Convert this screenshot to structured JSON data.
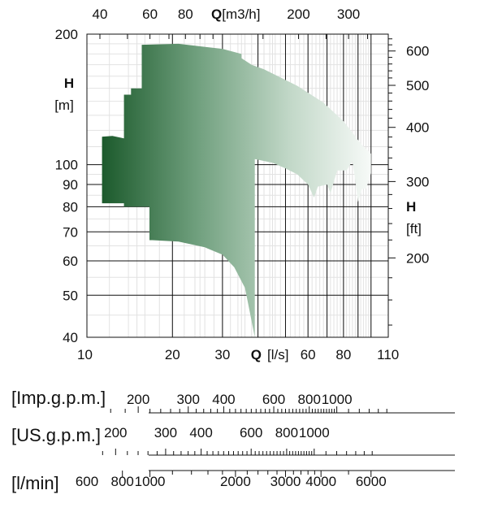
{
  "chart_data": {
    "type": "area",
    "title": "",
    "x_axis_bottom": {
      "label_bold": "Q",
      "label_unit": "[l/s]",
      "scale": "log",
      "range": [
        10,
        115
      ],
      "ticks": [
        {
          "v": 10,
          "t": "10"
        },
        {
          "v": 20,
          "t": "20"
        },
        {
          "v": 30,
          "t": "30"
        },
        {
          "v": 60,
          "t": "60"
        },
        {
          "v": 80,
          "t": "80"
        },
        {
          "v": 110,
          "t": "110"
        }
      ]
    },
    "x_axis_top": {
      "label_bold": "Q",
      "label_unit": "[m3/h]",
      "ticks": [
        {
          "v": 40,
          "t": "40"
        },
        {
          "v": 60,
          "t": "60"
        },
        {
          "v": 80,
          "t": "80"
        },
        {
          "v": 200,
          "t": "200"
        },
        {
          "v": 300,
          "t": "300"
        }
      ]
    },
    "y_axis_left": {
      "label_bold": "H",
      "label_unit": "[m]",
      "scale": "log",
      "range": [
        40,
        200
      ],
      "ticks": [
        {
          "v": 40,
          "t": "40"
        },
        {
          "v": 50,
          "t": "50"
        },
        {
          "v": 60,
          "t": "60"
        },
        {
          "v": 70,
          "t": "70"
        },
        {
          "v": 80,
          "t": "80"
        },
        {
          "v": 90,
          "t": "90"
        },
        {
          "v": 100,
          "t": "100"
        },
        {
          "v": 200,
          "t": "200"
        }
      ]
    },
    "y_axis_right": {
      "label_bold": "H",
      "label_unit": "[ft]",
      "ticks": [
        {
          "v": 200,
          "t": "200"
        },
        {
          "v": 300,
          "t": "300"
        },
        {
          "v": 400,
          "t": "400"
        },
        {
          "v": 500,
          "t": "500"
        },
        {
          "v": 600,
          "t": "600"
        }
      ]
    },
    "grid": true,
    "region": [
      [
        11.3,
        81.5
      ],
      [
        11.3,
        116
      ],
      [
        12.3,
        116.5
      ],
      [
        13.5,
        115
      ],
      [
        13.5,
        145
      ],
      [
        14.3,
        145
      ],
      [
        14.3,
        150
      ],
      [
        15.6,
        150
      ],
      [
        15.6,
        189
      ],
      [
        21,
        190
      ],
      [
        30,
        185
      ],
      [
        35,
        180
      ],
      [
        35,
        176
      ],
      [
        38,
        170
      ],
      [
        42,
        166
      ],
      [
        55,
        152
      ],
      [
        68,
        139
      ],
      [
        80,
        126
      ],
      [
        93,
        111
      ],
      [
        100,
        106
      ],
      [
        100,
        95.5
      ],
      [
        96,
        88
      ],
      [
        93,
        88
      ],
      [
        90,
        82
      ],
      [
        88,
        92
      ],
      [
        86,
        102
      ],
      [
        82,
        97
      ],
      [
        76,
        97
      ],
      [
        72,
        86
      ],
      [
        70,
        90
      ],
      [
        65,
        89
      ],
      [
        63,
        84
      ],
      [
        60,
        90
      ],
      [
        55,
        95
      ],
      [
        50,
        98
      ],
      [
        45,
        101
      ],
      [
        39,
        103
      ],
      [
        39,
        40
      ],
      [
        36,
        52
      ],
      [
        33,
        58
      ],
      [
        30,
        62
      ],
      [
        26,
        64.5
      ],
      [
        21,
        66.5
      ],
      [
        17,
        67
      ],
      [
        16.6,
        67
      ],
      [
        16.6,
        80
      ],
      [
        13.5,
        80
      ],
      [
        13.5,
        81.5
      ]
    ],
    "fill_gradient": [
      "#1c5a2c",
      "#6f9f7d",
      "#c2d8c8",
      "#f7faf8"
    ]
  },
  "flow_scales": [
    {
      "unit": "[Imp.g.p.m.]",
      "ticks": [
        {
          "v": 200,
          "t": "200"
        },
        {
          "v": 300,
          "t": "300"
        },
        {
          "v": 400,
          "t": "400"
        },
        {
          "v": 600,
          "t": "600"
        },
        {
          "v": 800,
          "t": "800"
        },
        {
          "v": 1000,
          "t": "1000"
        }
      ]
    },
    {
      "unit": "[US.g.p.m.]",
      "ticks": [
        {
          "v": 200,
          "t": "200"
        },
        {
          "v": 300,
          "t": "300"
        },
        {
          "v": 400,
          "t": "400"
        },
        {
          "v": 600,
          "t": "600"
        },
        {
          "v": 800,
          "t": "800"
        },
        {
          "v": 1000,
          "t": "1000"
        }
      ]
    },
    {
      "unit": "[l/min]",
      "ticks": [
        {
          "v": 600,
          "t": "600"
        },
        {
          "v": 800,
          "t": "800"
        },
        {
          "v": 1000,
          "t": "1000"
        },
        {
          "v": 2000,
          "t": "2000"
        },
        {
          "v": 3000,
          "t": "3000"
        },
        {
          "v": 4000,
          "t": "4000"
        },
        {
          "v": 6000,
          "t": "6000"
        }
      ]
    }
  ]
}
